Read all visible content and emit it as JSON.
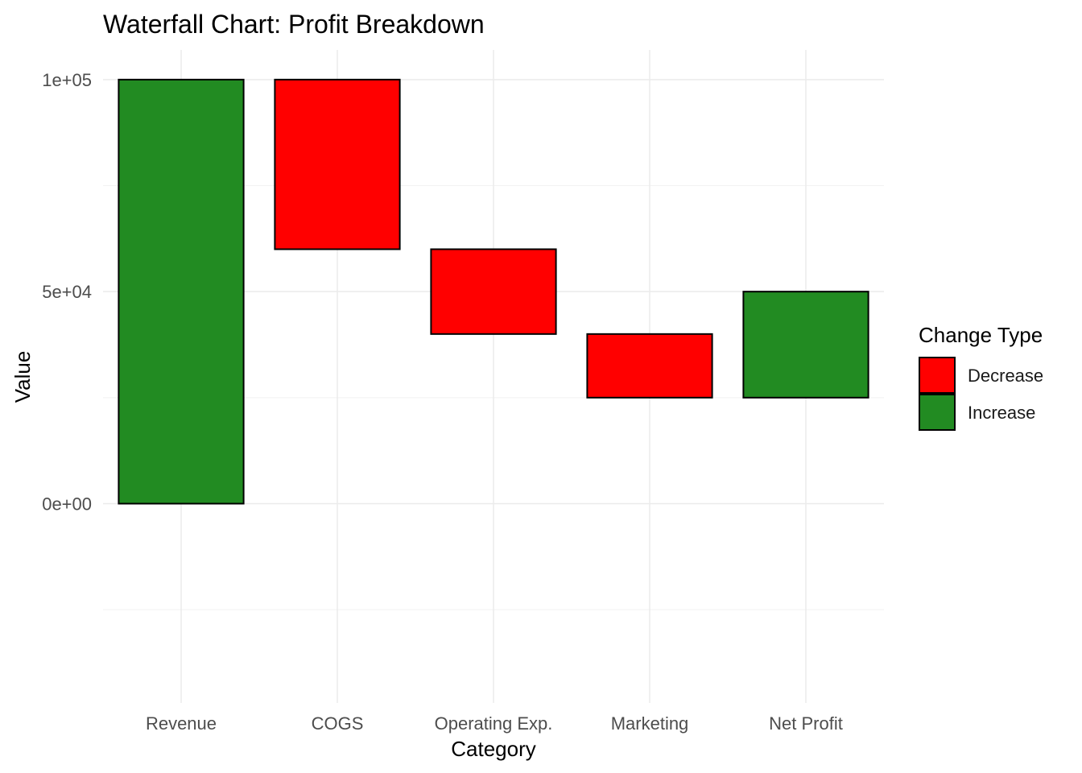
{
  "colors": {
    "Increase": "#228B22",
    "Decrease": "#FF0000",
    "bar_outline": "#000000"
  },
  "chart_data": {
    "type": "bar",
    "subtype": "waterfall",
    "title": "Waterfall Chart: Profit Breakdown",
    "xlabel": "Category",
    "ylabel": "Value",
    "categories": [
      "Revenue",
      "COGS",
      "Operating Exp.",
      "Marketing",
      "Net Profit"
    ],
    "bars": [
      {
        "category": "Revenue",
        "start": 0,
        "end": 100000,
        "type": "Increase"
      },
      {
        "category": "COGS",
        "start": 100000,
        "end": 60000,
        "type": "Decrease"
      },
      {
        "category": "Operating Exp.",
        "start": 60000,
        "end": 40000,
        "type": "Decrease"
      },
      {
        "category": "Marketing",
        "start": 40000,
        "end": 25000,
        "type": "Decrease"
      },
      {
        "category": "Net Profit",
        "start": 25000,
        "end": 50000,
        "type": "Increase"
      }
    ],
    "ylim": [
      -47000,
      107000
    ],
    "y_ticks": [
      0,
      50000,
      100000
    ],
    "y_tick_labels": [
      "0e+00",
      "5e+04",
      "1e+05"
    ],
    "y_minor_ticks": [
      -25000,
      25000,
      75000
    ],
    "grid": true,
    "legend": {
      "title": "Change Type",
      "position": "right",
      "entries": [
        "Decrease",
        "Increase"
      ]
    }
  }
}
